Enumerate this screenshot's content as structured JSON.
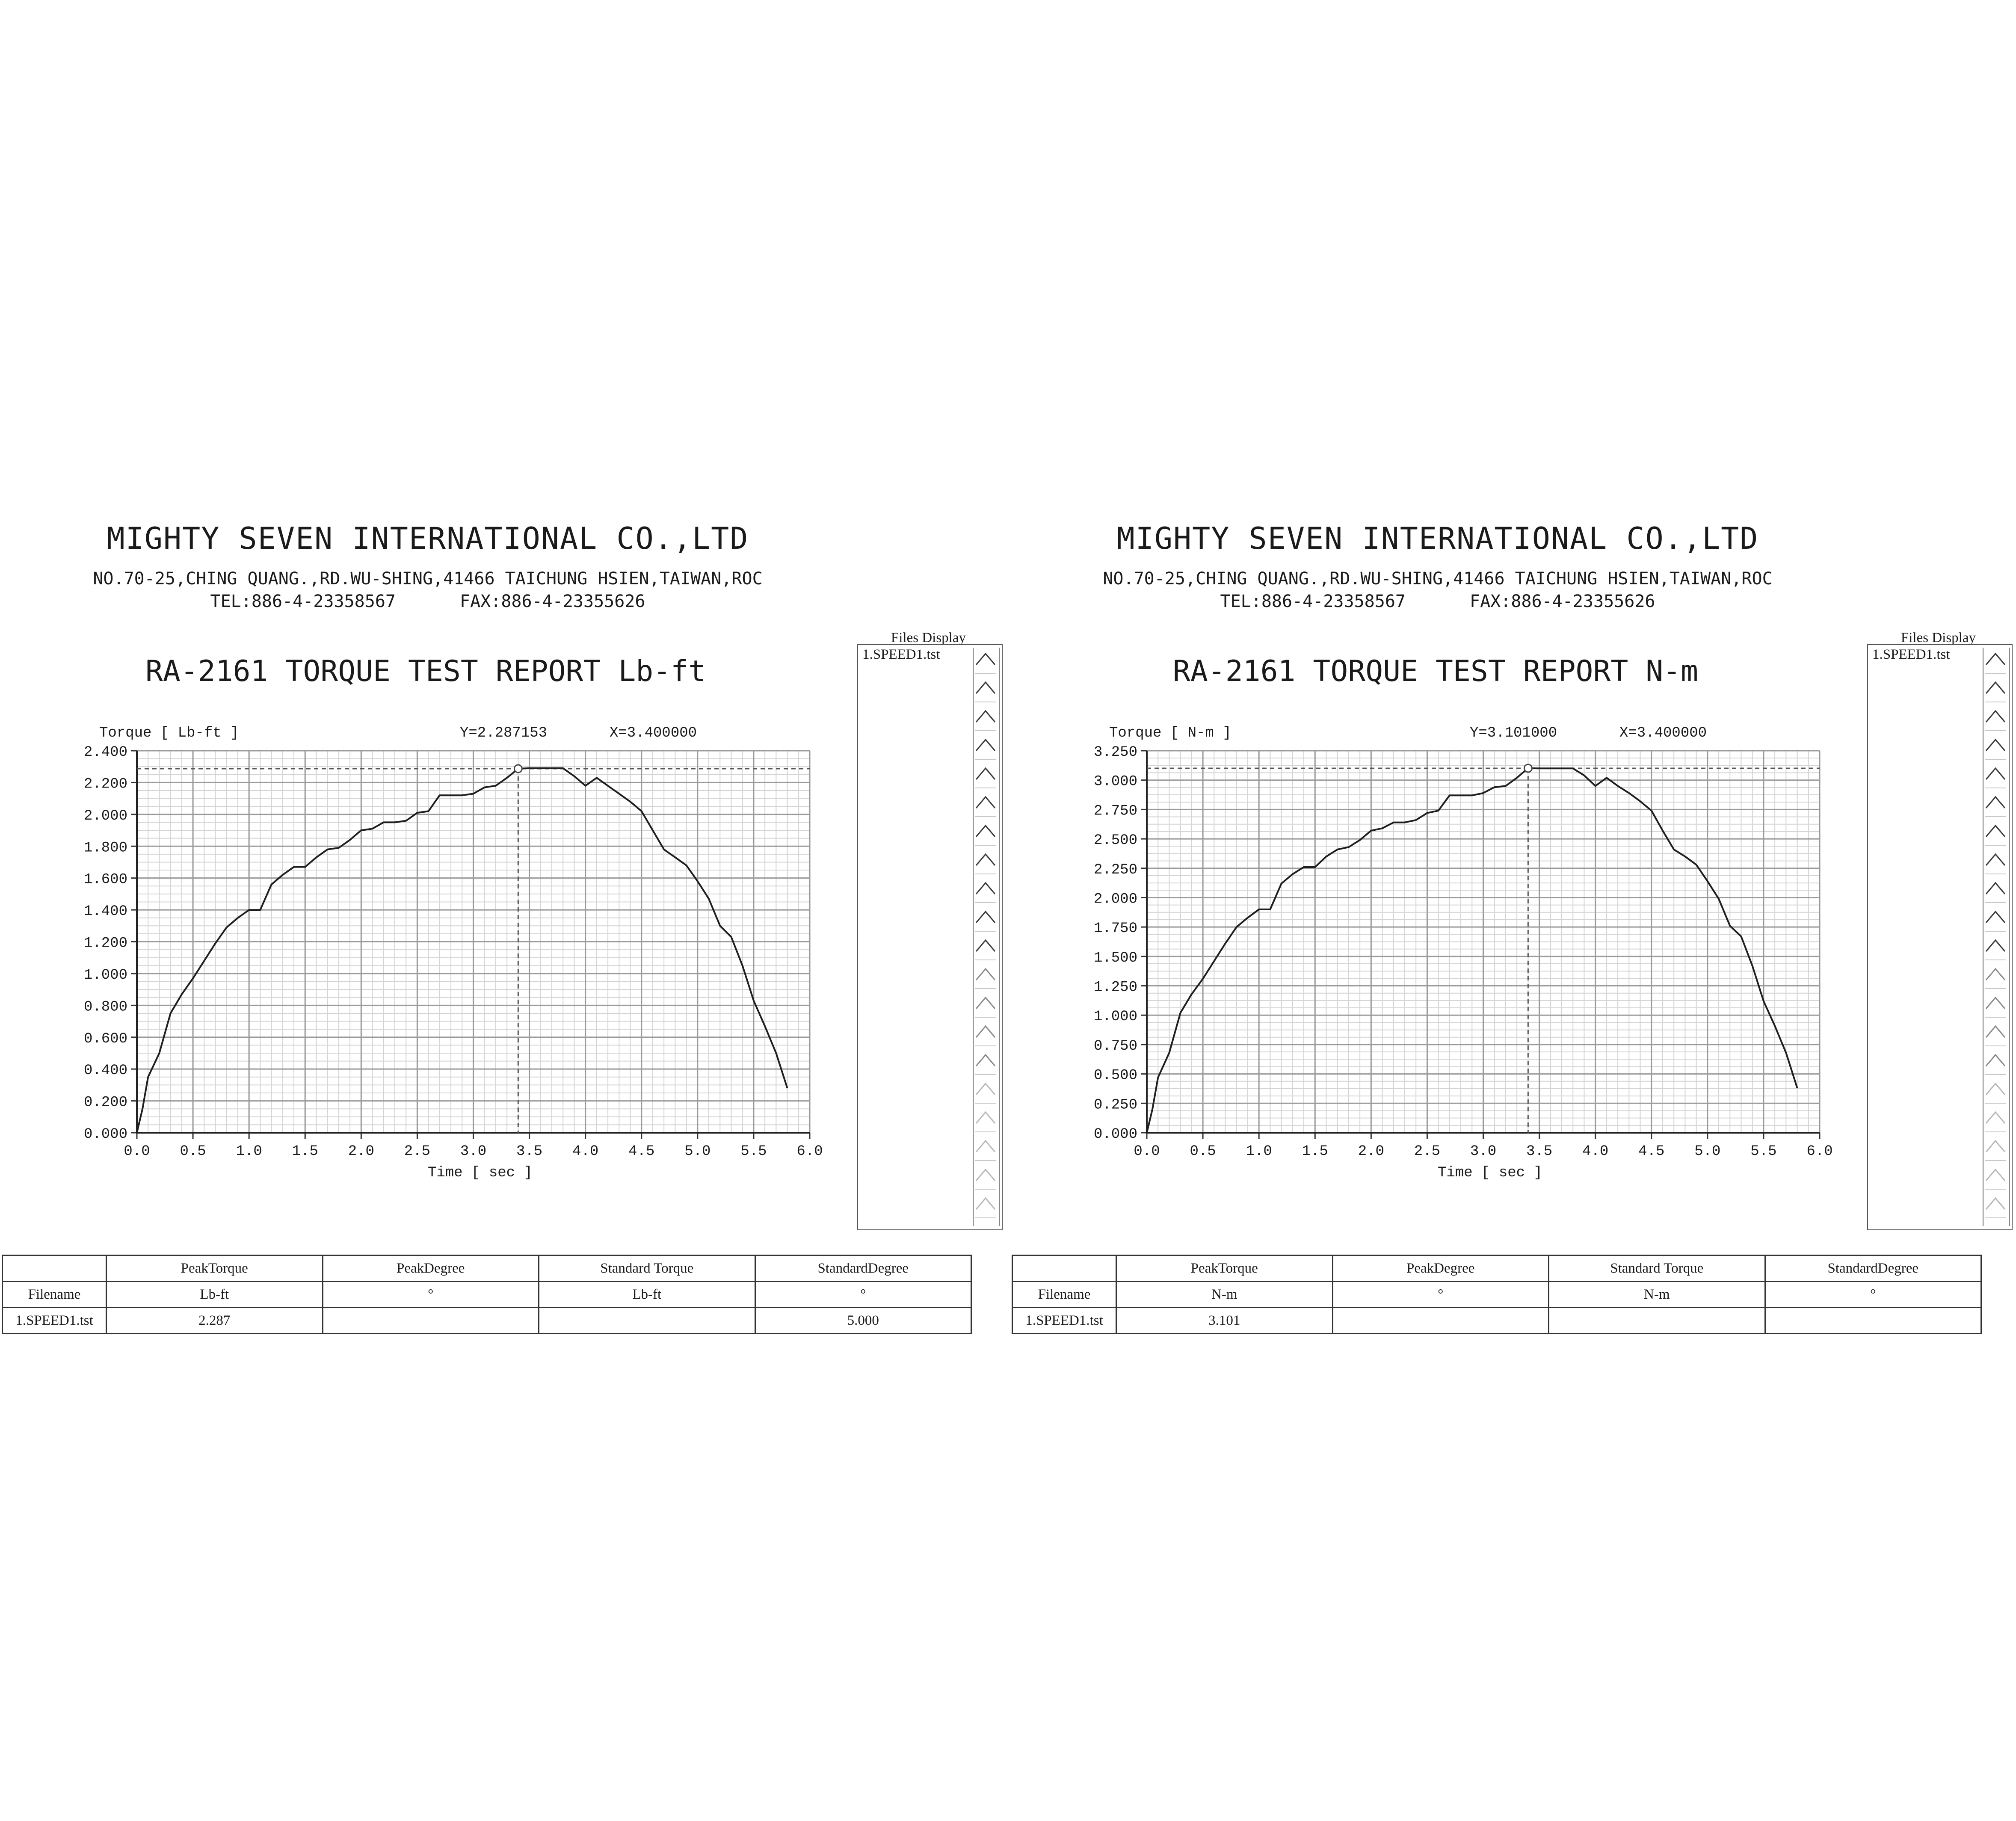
{
  "reports": [
    {
      "company": {
        "name": "MIGHTY SEVEN INTERNATIONAL CO.,LTD",
        "address": "NO.70-25,CHING QUANG.,RD.WU-SHING,41466 TAICHUNG HSIEN,TAIWAN,ROC",
        "tel": "TEL:886-4-23358567",
        "fax": "FAX:886-4-23355626"
      },
      "title": "RA-2161 TORQUE TEST REPORT Lb-ft",
      "cursor_y_label": "Y=2.287153",
      "cursor_x_label": "X=3.400000",
      "files_display": {
        "title": "Files Display",
        "items": [
          "1.SPEED1.tst"
        ]
      },
      "results": {
        "headers": [
          "",
          "PeakTorque",
          "PeakDegree",
          "Standard Torque",
          "StandardDegree"
        ],
        "units": [
          "Filename",
          "Lb-ft",
          "°",
          "Lb-ft",
          "°"
        ],
        "rows": [
          [
            "1.SPEED1.tst",
            "2.287",
            "",
            "",
            "5.000"
          ]
        ]
      }
    },
    {
      "company": {
        "name": "MIGHTY SEVEN INTERNATIONAL CO.,LTD",
        "address": "NO.70-25,CHING QUANG.,RD.WU-SHING,41466 TAICHUNG HSIEN,TAIWAN,ROC",
        "tel": "TEL:886-4-23358567",
        "fax": "FAX:886-4-23355626"
      },
      "title": "RA-2161 TORQUE TEST REPORT N-m",
      "cursor_y_label": "Y=3.101000",
      "cursor_x_label": "X=3.400000",
      "files_display": {
        "title": "Files Display",
        "items": [
          "1.SPEED1.tst"
        ]
      },
      "results": {
        "headers": [
          "",
          "PeakTorque",
          "PeakDegree",
          "Standard Torque",
          "StandardDegree"
        ],
        "units": [
          "Filename",
          "N-m",
          "°",
          "N-m",
          "°"
        ],
        "rows": [
          [
            "1.SPEED1.tst",
            "3.101",
            "",
            "",
            ""
          ]
        ]
      }
    }
  ],
  "chart_data": [
    {
      "type": "line",
      "xlabel": "Time [ sec ]",
      "ylabel": "Torque [ Lb-ft ]",
      "xlim": [
        0,
        6
      ],
      "ylim": [
        0,
        2.4
      ],
      "x_ticks": [
        "0.0",
        "0.5",
        "1.0",
        "1.5",
        "2.0",
        "2.5",
        "3.0",
        "3.5",
        "4.0",
        "4.5",
        "5.0",
        "5.5",
        "6.0"
      ],
      "y_ticks": [
        "0.000",
        "0.200",
        "0.400",
        "0.600",
        "0.800",
        "1.000",
        "1.200",
        "1.400",
        "1.600",
        "1.800",
        "2.000",
        "2.200",
        "2.400"
      ],
      "grid": true,
      "cursor": {
        "x": 3.4,
        "y": 2.287153
      },
      "series": [
        {
          "x": [
            0.0,
            0.05,
            0.1,
            0.2,
            0.3,
            0.4,
            0.5,
            0.6,
            0.7,
            0.8,
            0.9,
            1.0,
            1.1,
            1.2,
            1.3,
            1.4,
            1.5,
            1.6,
            1.7,
            1.8,
            1.9,
            2.0,
            2.1,
            2.2,
            2.3,
            2.4,
            2.5,
            2.6,
            2.7,
            2.8,
            2.9,
            3.0,
            3.1,
            3.2,
            3.3,
            3.4,
            3.5,
            3.6,
            3.7,
            3.8,
            3.9,
            4.0,
            4.1,
            4.2,
            4.3,
            4.4,
            4.5,
            4.6,
            4.7,
            4.8,
            4.9,
            5.0,
            5.1,
            5.2,
            5.3,
            5.4,
            5.5,
            5.6,
            5.7,
            5.8
          ],
          "y": [
            0.0,
            0.15,
            0.35,
            0.5,
            0.75,
            0.87,
            0.97,
            1.08,
            1.19,
            1.29,
            1.35,
            1.4,
            1.4,
            1.56,
            1.62,
            1.67,
            1.67,
            1.73,
            1.78,
            1.79,
            1.84,
            1.9,
            1.91,
            1.95,
            1.95,
            1.96,
            2.01,
            2.02,
            2.12,
            2.12,
            2.12,
            2.13,
            2.17,
            2.18,
            2.23,
            2.287,
            2.29,
            2.29,
            2.29,
            2.29,
            2.24,
            2.18,
            2.23,
            2.18,
            2.13,
            2.08,
            2.02,
            1.9,
            1.78,
            1.73,
            1.68,
            1.58,
            1.47,
            1.3,
            1.23,
            1.05,
            0.83,
            0.67,
            0.5,
            0.28
          ]
        }
      ]
    },
    {
      "type": "line",
      "xlabel": "Time [ sec ]",
      "ylabel": "Torque [ N-m ]",
      "xlim": [
        0,
        6
      ],
      "ylim": [
        0,
        3.25
      ],
      "x_ticks": [
        "0.0",
        "0.5",
        "1.0",
        "1.5",
        "2.0",
        "2.5",
        "3.0",
        "3.5",
        "4.0",
        "4.5",
        "5.0",
        "5.5",
        "6.0"
      ],
      "y_ticks": [
        "0.000",
        "0.250",
        "0.500",
        "0.750",
        "1.000",
        "1.250",
        "1.500",
        "1.750",
        "2.000",
        "2.250",
        "2.500",
        "2.750",
        "3.000",
        "3.250"
      ],
      "grid": true,
      "cursor": {
        "x": 3.4,
        "y": 3.101
      },
      "series": [
        {
          "x": [
            0.0,
            0.05,
            0.1,
            0.2,
            0.3,
            0.4,
            0.5,
            0.6,
            0.7,
            0.8,
            0.9,
            1.0,
            1.1,
            1.2,
            1.3,
            1.4,
            1.5,
            1.6,
            1.7,
            1.8,
            1.9,
            2.0,
            2.1,
            2.2,
            2.3,
            2.4,
            2.5,
            2.6,
            2.7,
            2.8,
            2.9,
            3.0,
            3.1,
            3.2,
            3.3,
            3.4,
            3.5,
            3.6,
            3.7,
            3.8,
            3.9,
            4.0,
            4.1,
            4.2,
            4.3,
            4.4,
            4.5,
            4.6,
            4.7,
            4.8,
            4.9,
            5.0,
            5.1,
            5.2,
            5.3,
            5.4,
            5.5,
            5.6,
            5.7,
            5.8
          ],
          "y": [
            0.0,
            0.2,
            0.47,
            0.68,
            1.02,
            1.18,
            1.31,
            1.46,
            1.61,
            1.75,
            1.83,
            1.9,
            1.9,
            2.12,
            2.2,
            2.26,
            2.26,
            2.35,
            2.41,
            2.43,
            2.49,
            2.57,
            2.59,
            2.64,
            2.64,
            2.66,
            2.72,
            2.74,
            2.87,
            2.87,
            2.87,
            2.89,
            2.94,
            2.95,
            3.02,
            3.101,
            3.1,
            3.1,
            3.1,
            3.1,
            3.04,
            2.95,
            3.02,
            2.95,
            2.89,
            2.82,
            2.74,
            2.57,
            2.41,
            2.35,
            2.28,
            2.14,
            1.99,
            1.76,
            1.67,
            1.42,
            1.12,
            0.91,
            0.68,
            0.38
          ]
        }
      ]
    }
  ]
}
